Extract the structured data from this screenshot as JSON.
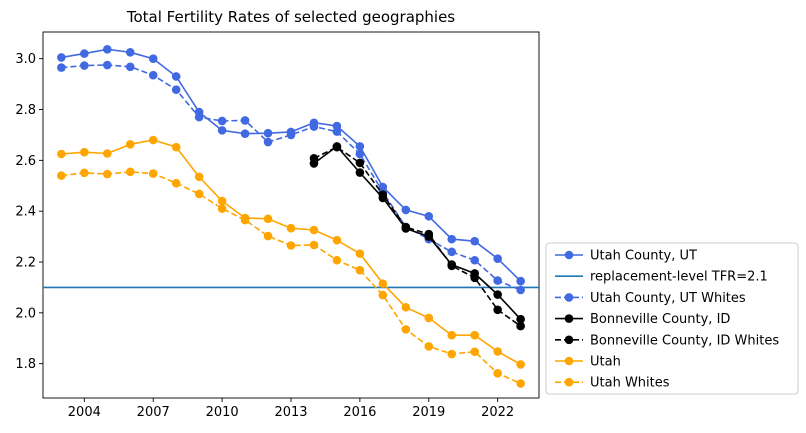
{
  "chart_data": {
    "type": "line",
    "title": "Total Fertility Rates of selected geographies",
    "xlabel": "",
    "ylabel": "",
    "xlim": [
      2002.2,
      2023.8
    ],
    "ylim": [
      1.665,
      3.105
    ],
    "x_ticks": [
      2004,
      2007,
      2010,
      2013,
      2016,
      2019,
      2022
    ],
    "x_tick_labels": [
      "2004",
      "2007",
      "2010",
      "2013",
      "2016",
      "2019",
      "2022"
    ],
    "y_ticks": [
      1.8,
      2.0,
      2.2,
      2.4,
      2.6,
      2.8,
      3.0
    ],
    "y_tick_labels": [
      "1.8",
      "2.0",
      "2.2",
      "2.4",
      "2.6",
      "2.8",
      "3.0"
    ],
    "grid": false,
    "legend_position": "outside-right-bottom",
    "reference_line": {
      "name": "replacement-level TFR=2.1",
      "y": 2.1,
      "color": "#1f77b4"
    },
    "legend": [
      "Utah County, UT",
      "replacement-level TFR=2.1",
      "Utah County, UT Whites",
      "Bonneville County, ID",
      "Bonneville County, ID Whites",
      "Utah",
      "Utah Whites"
    ],
    "series": [
      {
        "name": "Utah County, UT",
        "color": "#4169e1",
        "dash": "solid",
        "x": [
          2003,
          2004,
          2005,
          2006,
          2007,
          2008,
          2009,
          2010,
          2011,
          2012,
          2013,
          2014,
          2015,
          2016,
          2017,
          2018,
          2019,
          2020,
          2021,
          2022,
          2023
        ],
        "y": [
          3.005,
          3.02,
          3.037,
          3.025,
          3.0,
          2.93,
          2.79,
          2.718,
          2.705,
          2.707,
          2.712,
          2.748,
          2.735,
          2.655,
          2.495,
          2.405,
          2.38,
          2.29,
          2.282,
          2.213,
          2.125
        ]
      },
      {
        "name": "Utah County, UT Whites",
        "color": "#4169e1",
        "dash": "dashed",
        "x": [
          2003,
          2004,
          2005,
          2006,
          2007,
          2008,
          2009,
          2010,
          2011,
          2012,
          2013,
          2014,
          2015,
          2016,
          2017,
          2018,
          2019,
          2020,
          2021,
          2022,
          2023
        ],
        "y": [
          2.965,
          2.973,
          2.975,
          2.968,
          2.935,
          2.878,
          2.77,
          2.755,
          2.757,
          2.672,
          2.7,
          2.733,
          2.713,
          2.625,
          2.475,
          2.338,
          2.29,
          2.24,
          2.207,
          2.127,
          2.09
        ]
      },
      {
        "name": "Bonneville County, ID",
        "color": "#000000",
        "dash": "solid",
        "x": [
          2014,
          2015,
          2016,
          2017,
          2018,
          2019,
          2020,
          2021,
          2022,
          2023
        ],
        "y": [
          2.588,
          2.655,
          2.552,
          2.452,
          2.332,
          2.3,
          2.19,
          2.155,
          2.072,
          1.975
        ]
      },
      {
        "name": "Bonneville County, ID Whites",
        "color": "#000000",
        "dash": "dashed",
        "x": [
          2014,
          2015,
          2016,
          2017,
          2018,
          2019,
          2020,
          2021,
          2022,
          2023
        ],
        "y": [
          2.608,
          2.652,
          2.59,
          2.465,
          2.337,
          2.31,
          2.185,
          2.138,
          2.012,
          1.948
        ]
      },
      {
        "name": "Utah",
        "color": "#ffa500",
        "dash": "solid",
        "x": [
          2003,
          2004,
          2005,
          2006,
          2007,
          2008,
          2009,
          2010,
          2011,
          2012,
          2013,
          2014,
          2015,
          2016,
          2017,
          2018,
          2019,
          2020,
          2021,
          2022,
          2023
        ],
        "y": [
          2.625,
          2.632,
          2.627,
          2.663,
          2.68,
          2.652,
          2.535,
          2.44,
          2.373,
          2.37,
          2.333,
          2.326,
          2.286,
          2.233,
          2.115,
          2.022,
          1.98,
          1.912,
          1.912,
          1.848,
          1.797
        ]
      },
      {
        "name": "Utah Whites",
        "color": "#ffa500",
        "dash": "dashed",
        "x": [
          2003,
          2004,
          2005,
          2006,
          2007,
          2008,
          2009,
          2010,
          2011,
          2012,
          2013,
          2014,
          2015,
          2016,
          2017,
          2018,
          2019,
          2020,
          2021,
          2022,
          2023
        ],
        "y": [
          2.54,
          2.551,
          2.546,
          2.555,
          2.548,
          2.51,
          2.468,
          2.41,
          2.365,
          2.302,
          2.265,
          2.267,
          2.207,
          2.168,
          2.07,
          1.935,
          1.868,
          1.838,
          1.847,
          1.762,
          1.722
        ]
      }
    ]
  }
}
